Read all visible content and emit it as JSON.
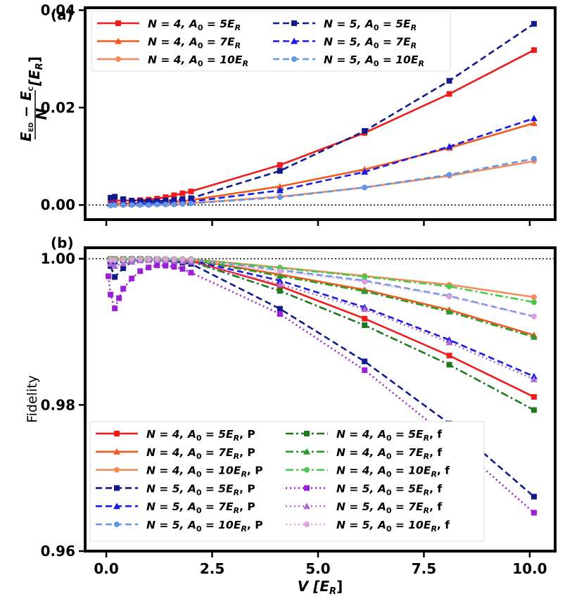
{
  "chart_data": [
    {
      "panel": "(a)",
      "type": "line",
      "ylabel": {
        "num": "E",
        "num_sub": "ED",
        "minus": "−",
        "num2": "E",
        "num2_sub": "C",
        "den": "N",
        "unit": "[E",
        "unit_sub": "R",
        "unit_close": "]"
      },
      "xlim": [
        -0.5,
        10.6
      ],
      "ylim": [
        -0.003,
        0.0405
      ],
      "yticks": [
        {
          "v": 0.0,
          "label": "0.00"
        },
        {
          "v": 0.02,
          "label": "0.02"
        },
        {
          "v": 0.04,
          "label": "0.04"
        }
      ],
      "xticks": [
        0,
        2.5,
        5,
        7.5,
        10
      ],
      "hline": 0,
      "legend": {
        "position": "top",
        "ncol": 2
      },
      "series": [
        {
          "name": "N = 4, A₀ = 5E_R",
          "label_main": "N = 4, A",
          "label_sub": "0",
          "label_tail": " = 5E",
          "label_tail_sub": "R",
          "label_suffix": "",
          "color": "#ee1c1c",
          "dash": "",
          "marker": "square",
          "x": [
            0.1,
            0.2,
            0.4,
            0.6,
            0.8,
            1.0,
            1.2,
            1.4,
            1.6,
            1.8,
            2.0,
            4.1,
            6.1,
            8.1,
            10.1
          ],
          "y": [
            0.0008,
            0.0009,
            0.0009,
            0.0009,
            0.001,
            0.0011,
            0.0013,
            0.0016,
            0.002,
            0.0024,
            0.0028,
            0.0082,
            0.0148,
            0.0228,
            0.0318
          ]
        },
        {
          "name": "N = 4, A₀ = 7E_R",
          "label_main": "N = 4, A",
          "label_sub": "0",
          "label_tail": " = 7E",
          "label_tail_sub": "R",
          "label_suffix": "",
          "color": "#f05a1e",
          "dash": "",
          "marker": "triangle",
          "x": [
            0.1,
            0.2,
            0.4,
            0.6,
            0.8,
            1.0,
            1.2,
            1.4,
            1.6,
            1.8,
            2.0,
            4.1,
            6.1,
            8.1,
            10.1
          ],
          "y": [
            0.0002,
            0.0003,
            0.0003,
            0.0003,
            0.0004,
            0.0004,
            0.0005,
            0.0006,
            0.0007,
            0.0008,
            0.001,
            0.0038,
            0.0073,
            0.0117,
            0.0168
          ]
        },
        {
          "name": "N = 4, A₀ = 10E_R",
          "label_main": "N = 4, A",
          "label_sub": "0",
          "label_tail": " = 10E",
          "label_tail_sub": "R",
          "label_suffix": "",
          "color": "#f58c5a",
          "dash": "",
          "marker": "circle",
          "x": [
            0.1,
            0.2,
            0.4,
            0.6,
            0.8,
            1.0,
            1.2,
            1.4,
            1.6,
            1.8,
            2.0,
            4.1,
            6.1,
            8.1,
            10.1
          ],
          "y": [
            -0.0001,
            0.0,
            0.0,
            0.0,
            0.0,
            0.0001,
            0.0001,
            0.0001,
            0.0002,
            0.0003,
            0.0004,
            0.0017,
            0.0036,
            0.006,
            0.009
          ]
        },
        {
          "name": "N = 5, A₀ = 5E_R",
          "label_main": "N = 5, A",
          "label_sub": "0",
          "label_tail": " = 5E",
          "label_tail_sub": "R",
          "label_suffix": "",
          "color": "#101a8c",
          "dash": "9,5",
          "marker": "square",
          "x": [
            0.1,
            0.2,
            0.4,
            0.6,
            0.8,
            1.0,
            1.2,
            1.4,
            1.6,
            1.8,
            2.0,
            4.1,
            6.1,
            8.1,
            10.1
          ],
          "y": [
            0.0015,
            0.0017,
            0.0012,
            0.0009,
            0.0008,
            0.0008,
            0.0008,
            0.0009,
            0.001,
            0.0012,
            0.0014,
            0.007,
            0.0152,
            0.0255,
            0.0372
          ]
        },
        {
          "name": "N = 5, A₀ = 7E_R",
          "label_main": "N = 5, A",
          "label_sub": "0",
          "label_tail": " = 7E",
          "label_tail_sub": "R",
          "label_suffix": "",
          "color": "#1a1ae6",
          "dash": "9,5",
          "marker": "triangle",
          "x": [
            0.1,
            0.2,
            0.4,
            0.6,
            0.8,
            1.0,
            1.2,
            1.4,
            1.6,
            1.8,
            2.0,
            4.1,
            6.1,
            8.1,
            10.1
          ],
          "y": [
            0.0003,
            0.0004,
            0.0003,
            0.0003,
            0.0003,
            0.0003,
            0.0004,
            0.0004,
            0.0005,
            0.0006,
            0.0007,
            0.003,
            0.0068,
            0.012,
            0.0178
          ]
        },
        {
          "name": "N = 5, A₀ = 10E_R",
          "label_main": "N = 5, A",
          "label_sub": "0",
          "label_tail": " = 10E",
          "label_tail_sub": "R",
          "label_suffix": "",
          "color": "#6496e6",
          "dash": "9,5",
          "marker": "circle",
          "x": [
            0.1,
            0.2,
            0.4,
            0.6,
            0.8,
            1.0,
            1.2,
            1.4,
            1.6,
            1.8,
            2.0,
            4.1,
            6.1,
            8.1,
            10.1
          ],
          "y": [
            -0.0001,
            0.0,
            0.0,
            0.0,
            0.0,
            0.0,
            0.0001,
            0.0001,
            0.0001,
            0.0002,
            0.0003,
            0.0016,
            0.0036,
            0.0062,
            0.0095
          ]
        }
      ]
    },
    {
      "panel": "(b)",
      "type": "line",
      "ylabel_text": "Fidelity",
      "xlabel": {
        "main": "V",
        "unit": "[E",
        "unit_sub": "R",
        "unit_close": "]"
      },
      "xlim": [
        -0.5,
        10.6
      ],
      "ylim": [
        0.96,
        1.0015
      ],
      "yticks": [
        {
          "v": 0.96,
          "label": "0.96"
        },
        {
          "v": 0.98,
          "label": "0.98"
        },
        {
          "v": 1.0,
          "label": "1.00"
        }
      ],
      "xticks": [
        {
          "v": 0,
          "label": "0.0"
        },
        {
          "v": 2.5,
          "label": "2.5"
        },
        {
          "v": 5,
          "label": "5.0"
        },
        {
          "v": 7.5,
          "label": "7.5"
        },
        {
          "v": 10,
          "label": "10.0"
        }
      ],
      "hline": 1.0,
      "legend": {
        "position": "bottom-left",
        "ncol": 2
      },
      "series": [
        {
          "name": "N = 4, A₀ = 5E_R, P",
          "label_main": "N = 4, A",
          "label_sub": "0",
          "label_tail": " = 5E",
          "label_tail_sub": "R",
          "label_suffix": ", P",
          "color": "#ee1c1c",
          "dash": "",
          "marker": "square",
          "x": [
            0.1,
            0.2,
            0.4,
            0.6,
            0.8,
            1.0,
            1.2,
            1.4,
            1.6,
            1.8,
            2.0,
            4.1,
            6.1,
            8.1,
            10.1
          ],
          "y": [
            0.99995,
            0.99995,
            0.99995,
            0.99995,
            0.99995,
            0.99993,
            0.9999,
            0.99985,
            0.9998,
            0.99975,
            0.9997,
            0.99625,
            0.9918,
            0.98675,
            0.9811
          ]
        },
        {
          "name": "N = 4, A₀ = 7E_R, P",
          "label_main": "N = 4, A",
          "label_sub": "0",
          "label_tail": " = 7E",
          "label_tail_sub": "R",
          "label_suffix": ", P",
          "color": "#f05a1e",
          "dash": "",
          "marker": "triangle",
          "x": [
            0.1,
            0.2,
            0.4,
            0.6,
            0.8,
            1.0,
            1.2,
            1.4,
            1.6,
            1.8,
            2.0,
            4.1,
            6.1,
            8.1,
            10.1
          ],
          "y": [
            0.99998,
            0.99998,
            0.99998,
            0.99998,
            0.99998,
            0.99997,
            0.99996,
            0.99994,
            0.99992,
            0.9999,
            0.99987,
            0.99785,
            0.99575,
            0.993,
            0.98955
          ]
        },
        {
          "name": "N = 4, A₀ = 10E_R, P",
          "label_main": "N = 4, A",
          "label_sub": "0",
          "label_tail": " = 10E",
          "label_tail_sub": "R",
          "label_suffix": ", P",
          "color": "#f58c5a",
          "dash": "",
          "marker": "circle",
          "x": [
            0.1,
            0.2,
            0.4,
            0.6,
            0.8,
            1.0,
            1.2,
            1.4,
            1.6,
            1.8,
            2.0,
            4.1,
            6.1,
            8.1,
            10.1
          ],
          "y": [
            0.99999,
            0.99999,
            0.99999,
            0.99999,
            0.99999,
            0.99999,
            0.99998,
            0.99998,
            0.99997,
            0.99996,
            0.99995,
            0.9988,
            0.99765,
            0.99645,
            0.99475
          ]
        },
        {
          "name": "N = 5, A₀ = 5E_R, P",
          "label_main": "N = 5, A",
          "label_sub": "0",
          "label_tail": " = 5E",
          "label_tail_sub": "R",
          "label_suffix": ", P",
          "color": "#101a8c",
          "dash": "9,5",
          "marker": "square",
          "x": [
            0.1,
            0.2,
            0.4,
            0.6,
            0.8,
            1.0,
            1.2,
            1.4,
            1.6,
            1.8,
            2.0,
            4.1,
            6.1,
            8.1,
            10.1
          ],
          "y": [
            0.999,
            0.9975,
            0.9987,
            0.9996,
            0.99985,
            0.9999,
            0.99985,
            0.99975,
            0.9996,
            0.99945,
            0.9993,
            0.99315,
            0.98595,
            0.97745,
            0.96745
          ]
        },
        {
          "name": "N = 5, A₀ = 7E_R, P",
          "label_main": "N = 5, A",
          "label_sub": "0",
          "label_tail": " = 7E",
          "label_tail_sub": "R",
          "label_suffix": ", P",
          "color": "#1a1ae6",
          "dash": "9,5",
          "marker": "triangle",
          "x": [
            0.1,
            0.2,
            0.4,
            0.6,
            0.8,
            1.0,
            1.2,
            1.4,
            1.6,
            1.8,
            2.0,
            4.1,
            6.1,
            8.1,
            10.1
          ],
          "y": [
            0.99975,
            0.9996,
            0.9998,
            0.99992,
            0.99995,
            0.99995,
            0.99994,
            0.99992,
            0.99988,
            0.99983,
            0.99978,
            0.997,
            0.99335,
            0.9889,
            0.9839
          ]
        },
        {
          "name": "N = 5, A₀ = 10E_R, P",
          "label_main": "N = 5, A",
          "label_sub": "0",
          "label_tail": " = 10E",
          "label_tail_sub": "R",
          "label_suffix": ", P",
          "color": "#6496e6",
          "dash": "9,5",
          "marker": "circle",
          "x": [
            0.1,
            0.2,
            0.4,
            0.6,
            0.8,
            1.0,
            1.2,
            1.4,
            1.6,
            1.8,
            2.0,
            4.1,
            6.1,
            8.1,
            10.1
          ],
          "y": [
            0.99995,
            0.99993,
            0.99996,
            0.99998,
            0.99999,
            0.99999,
            0.99998,
            0.99997,
            0.99996,
            0.99994,
            0.99992,
            0.99845,
            0.997,
            0.9949,
            0.9921
          ]
        },
        {
          "name": "N = 4, A₀ = 5E_R, f",
          "label_main": "N = 4, A",
          "label_sub": "0",
          "label_tail": " = 5E",
          "label_tail_sub": "R",
          "label_suffix": ", f",
          "color": "#1f7a1f",
          "dash": "11,4,3,4",
          "marker": "square",
          "x": [
            0.1,
            0.2,
            0.4,
            0.6,
            0.8,
            1.0,
            1.2,
            1.4,
            1.6,
            1.8,
            2.0,
            4.1,
            6.1,
            8.1,
            10.1
          ],
          "y": [
            0.99985,
            0.9998,
            0.99985,
            0.99992,
            0.99995,
            0.99993,
            0.9999,
            0.99984,
            0.99977,
            0.9997,
            0.99962,
            0.9956,
            0.9909,
            0.9855,
            0.9793
          ]
        },
        {
          "name": "N = 4, A₀ = 7E_R, f",
          "label_main": "N = 4, A",
          "label_sub": "0",
          "label_tail": " = 7E",
          "label_tail_sub": "R",
          "label_suffix": ", f",
          "color": "#2e9a2e",
          "dash": "11,4,3,4",
          "marker": "triangle",
          "x": [
            0.1,
            0.2,
            0.4,
            0.6,
            0.8,
            1.0,
            1.2,
            1.4,
            1.6,
            1.8,
            2.0,
            4.1,
            6.1,
            8.1,
            10.1
          ],
          "y": [
            0.99995,
            0.99993,
            0.99995,
            0.99997,
            0.99998,
            0.99997,
            0.99995,
            0.99993,
            0.9999,
            0.99987,
            0.99983,
            0.99765,
            0.99555,
            0.99275,
            0.9893
          ]
        },
        {
          "name": "N = 4, A₀ = 10E_R, f",
          "label_main": "N = 4, A",
          "label_sub": "0",
          "label_tail": " = 10E",
          "label_tail_sub": "R",
          "label_suffix": ", f",
          "color": "#4cc84c",
          "dash": "11,4,3,4",
          "marker": "circle",
          "x": [
            0.1,
            0.2,
            0.4,
            0.6,
            0.8,
            1.0,
            1.2,
            1.4,
            1.6,
            1.8,
            2.0,
            4.1,
            6.1,
            8.1,
            10.1
          ],
          "y": [
            0.99998,
            0.99997,
            0.99998,
            0.99999,
            0.99999,
            0.99999,
            0.99998,
            0.99997,
            0.99996,
            0.99995,
            0.99993,
            0.99875,
            0.99755,
            0.9962,
            0.99405
          ]
        },
        {
          "name": "N = 5, A₀ = 5E_R, f",
          "label_main": "N = 5, A",
          "label_sub": "0",
          "label_tail": " = 5E",
          "label_tail_sub": "R",
          "label_suffix": ", f",
          "color": "#9a1fd6",
          "dash": "2,4",
          "marker": "square",
          "x": [
            0.05,
            0.1,
            0.2,
            0.3,
            0.4,
            0.6,
            0.8,
            1.0,
            1.2,
            1.4,
            1.6,
            1.8,
            2.0,
            4.1,
            6.1,
            8.1,
            10.1
          ],
          "y": [
            0.9976,
            0.9951,
            0.9932,
            0.9946,
            0.9959,
            0.9973,
            0.9983,
            0.9988,
            0.9991,
            0.99905,
            0.9989,
            0.9986,
            0.9981,
            0.99245,
            0.98475,
            0.97545,
            0.96525
          ]
        },
        {
          "name": "N = 5, A₀ = 7E_R, f",
          "label_main": "N = 5, A",
          "label_sub": "0",
          "label_tail": " = 7E",
          "label_tail_sub": "R",
          "label_suffix": ", f",
          "color": "#b06ad6",
          "dash": "2,4",
          "marker": "triangle",
          "x": [
            0.1,
            0.2,
            0.4,
            0.6,
            0.8,
            1.0,
            1.2,
            1.4,
            1.6,
            1.8,
            2.0,
            4.1,
            6.1,
            8.1,
            10.1
          ],
          "y": [
            0.9993,
            0.999,
            0.99935,
            0.9996,
            0.99975,
            0.9998,
            0.99978,
            0.99975,
            0.9997,
            0.99963,
            0.99955,
            0.9965,
            0.9931,
            0.98855,
            0.9835
          ]
        },
        {
          "name": "N = 5, A₀ = 10E_R, f",
          "label_main": "N = 5, A",
          "label_sub": "0",
          "label_tail": " = 10E",
          "label_tail_sub": "R",
          "label_suffix": ", f",
          "color": "#dda0dd",
          "dash": "2,4",
          "marker": "circle",
          "x": [
            0.1,
            0.2,
            0.4,
            0.6,
            0.8,
            1.0,
            1.2,
            1.4,
            1.6,
            1.8,
            2.0,
            4.1,
            6.1,
            8.1,
            10.1
          ],
          "y": [
            0.99985,
            0.9998,
            0.99985,
            0.99992,
            0.99995,
            0.99996,
            0.99995,
            0.99993,
            0.99991,
            0.99989,
            0.99986,
            0.9983,
            0.99685,
            0.9948,
            0.9921
          ]
        }
      ]
    }
  ]
}
